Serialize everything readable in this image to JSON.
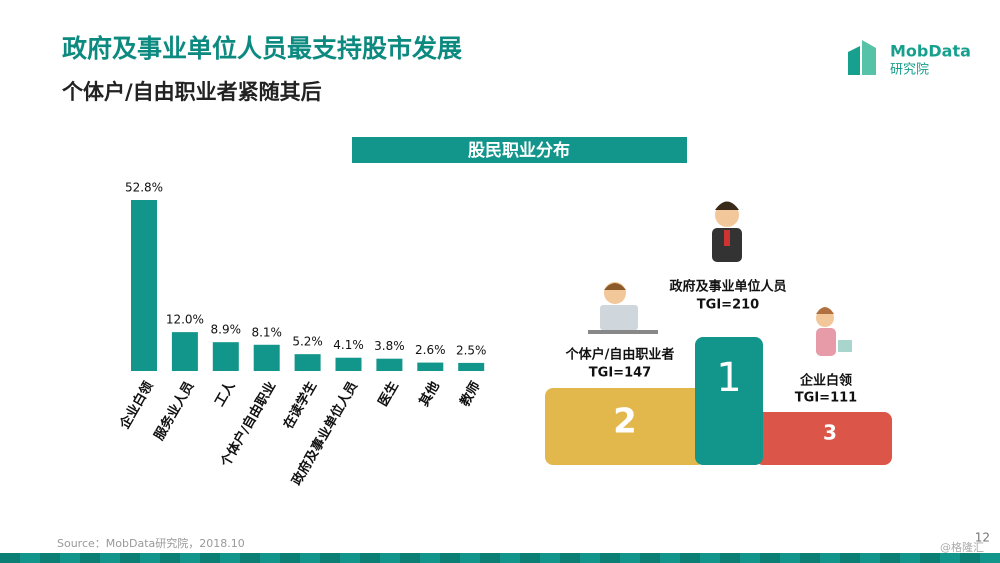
{
  "header": {
    "title": "政府及事业单位人员最支持股市发展",
    "subtitle": "个体户/自由职业者紧随其后"
  },
  "logo": {
    "name": "MobData",
    "sub": "研究院"
  },
  "chart_data": {
    "type": "bar",
    "title": "股民职业分布",
    "categories": [
      "企业白领",
      "服务业人员",
      "工人",
      "个体户/自由职业",
      "在读学生",
      "政府及事业单位人员",
      "医生",
      "其他",
      "教师"
    ],
    "values": [
      52.8,
      12.0,
      8.9,
      8.1,
      5.2,
      4.1,
      3.8,
      2.6,
      2.5
    ],
    "value_labels": [
      "52.8%",
      "12.0%",
      "8.9%",
      "8.1%",
      "5.2%",
      "4.1%",
      "3.8%",
      "2.6%",
      "2.5%"
    ],
    "color": "#12958a"
  },
  "podium": [
    {
      "rank": "1",
      "label": "政府及事业单位人员",
      "tgi": "TGI=210"
    },
    {
      "rank": "2",
      "label": "个体户/自由职业者",
      "tgi": "TGI=147"
    },
    {
      "rank": "3",
      "label": "企业白领",
      "tgi": "TGI=111"
    }
  ],
  "footer": {
    "source": "Source：MobData研究院，2018.10",
    "page": "12",
    "watermark": "@格隆汇"
  }
}
